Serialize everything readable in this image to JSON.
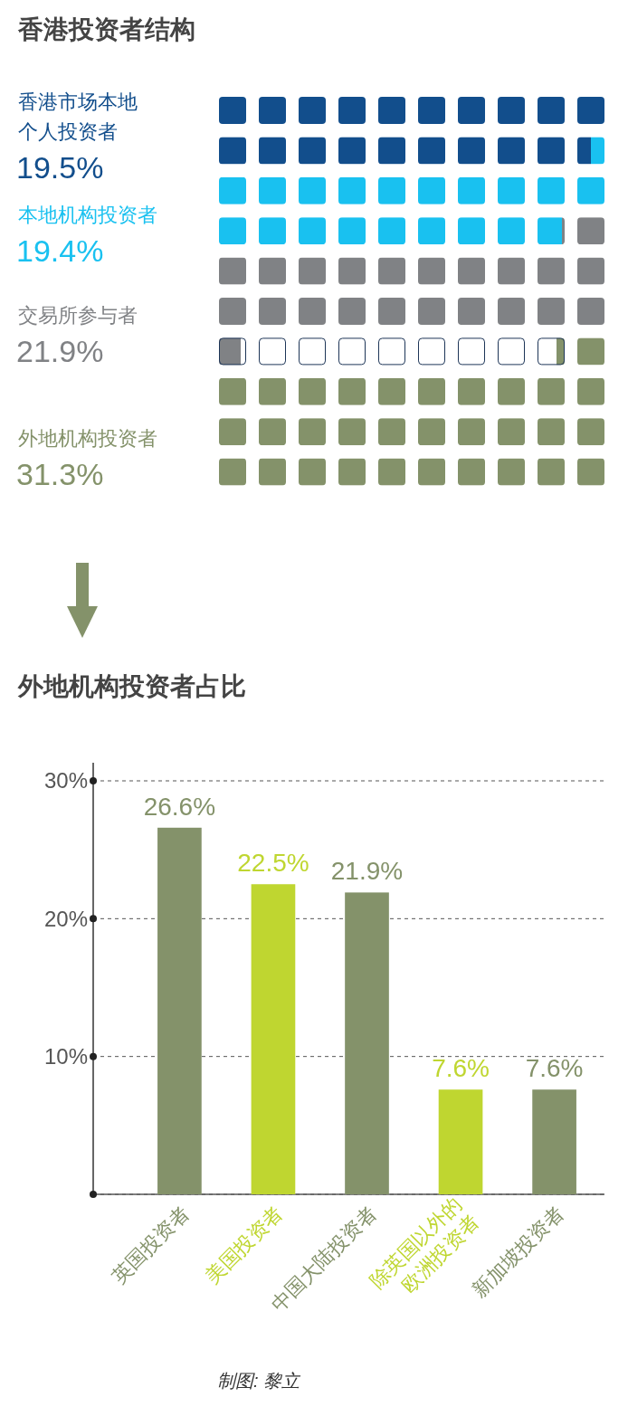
{
  "chart_data": [
    {
      "type": "other",
      "title": "香港投资者结构",
      "categories": [
        "香港市场本地个人投资者",
        "本地机构投资者",
        "交易所参与者",
        "外地机构投资者"
      ],
      "values": [
        19.5,
        19.4,
        21.9,
        31.3
      ],
      "value_labels": [
        "19.5%",
        "19.4%",
        "21.9%",
        "31.3%"
      ],
      "colors": [
        "#124e8c",
        "#19c1f0",
        "#808285",
        "#84926a"
      ]
    },
    {
      "type": "bar",
      "title": "外地机构投资者占比",
      "categories": [
        "英国投资者",
        "美国投资者",
        "中国大陆投资者",
        "除英国以外的欧洲投资者",
        "新加坡投资者"
      ],
      "values": [
        26.6,
        22.5,
        21.9,
        7.6,
        7.6
      ],
      "value_labels": [
        "26.6%",
        "22.5%",
        "21.9%",
        "7.6%",
        "7.6%"
      ],
      "colors": [
        "#84926a",
        "#bfd630",
        "#84926a",
        "#bfd630",
        "#84926a"
      ],
      "ylim": [
        0,
        30
      ],
      "yticks": [
        {
          "value": 0,
          "label": null
        },
        {
          "value": 10,
          "label": "10%"
        },
        {
          "value": 20,
          "label": "20%"
        },
        {
          "value": 30,
          "label": "30%"
        }
      ],
      "grid": "y",
      "annotations": [
        "制图: 黎立"
      ]
    }
  ]
}
